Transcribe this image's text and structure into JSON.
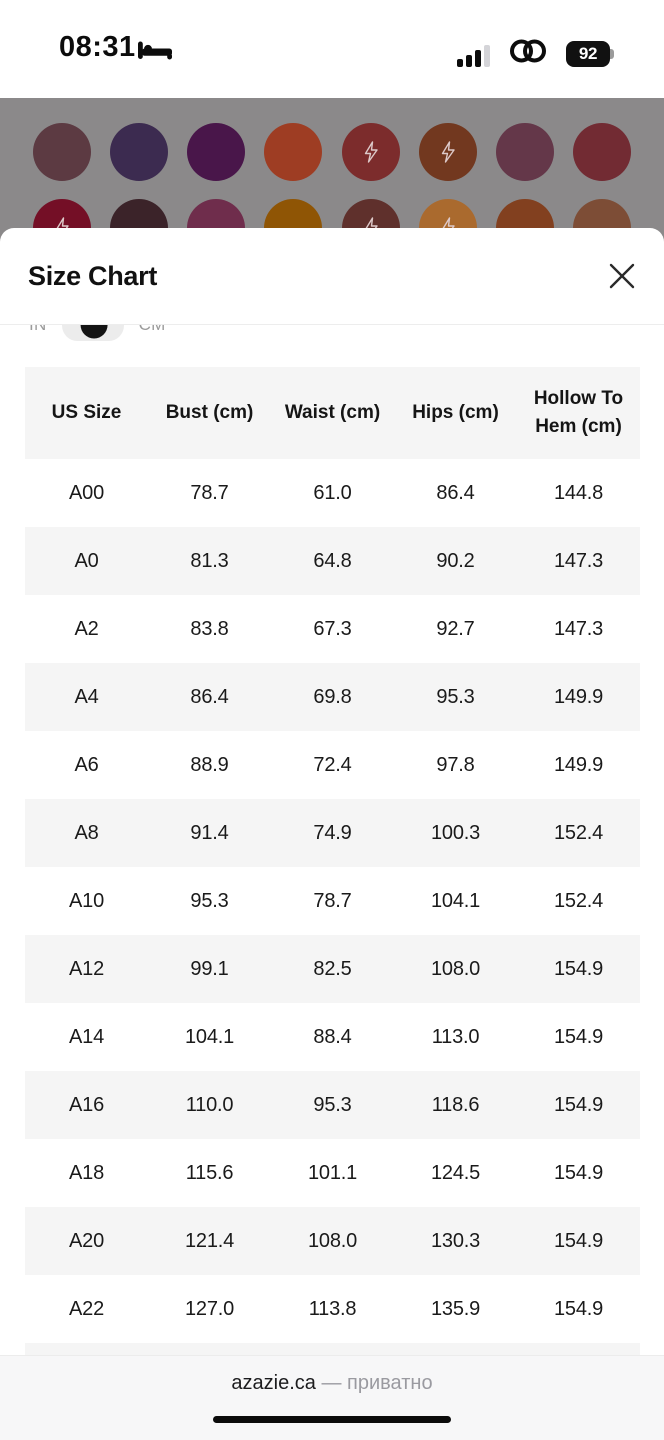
{
  "status_bar": {
    "time": "08:31",
    "battery_percent": "92"
  },
  "backdrop": {
    "overlay_color": "#8b898a",
    "swatch_rows": [
      [
        {
          "color": "#5c3a42",
          "bolt": false
        },
        {
          "color": "#3c2b50",
          "bolt": false
        },
        {
          "color": "#49164a",
          "bolt": false
        },
        {
          "color": "#9e3d23",
          "bolt": false
        },
        {
          "color": "#7c2c2c",
          "bolt": true
        },
        {
          "color": "#72381f",
          "bolt": true
        },
        {
          "color": "#643749",
          "bolt": false
        },
        {
          "color": "#722b33",
          "bolt": false
        }
      ],
      [
        {
          "color": "#740f26",
          "bolt": true
        },
        {
          "color": "#3b2329",
          "bolt": false
        },
        {
          "color": "#6f2d4c",
          "bolt": false
        },
        {
          "color": "#8f5505",
          "bolt": false
        },
        {
          "color": "#5f302c",
          "bolt": true
        },
        {
          "color": "#aa6a2e",
          "bolt": true
        },
        {
          "color": "#82401f",
          "bolt": false
        },
        {
          "color": "#7d4d36",
          "bolt": false
        }
      ]
    ]
  },
  "sheet": {
    "title": "Size Chart",
    "unit_toggle": {
      "in_label": "IN",
      "cm_label": "CM",
      "selected": "CM"
    }
  },
  "size_table": {
    "columns": [
      "US Size",
      "Bust (cm)",
      "Waist (cm)",
      "Hips (cm)",
      "Hollow To Hem (cm)"
    ],
    "rows": [
      [
        "A00",
        "78.7",
        "61.0",
        "86.4",
        "144.8"
      ],
      [
        "A0",
        "81.3",
        "64.8",
        "90.2",
        "147.3"
      ],
      [
        "A2",
        "83.8",
        "67.3",
        "92.7",
        "147.3"
      ],
      [
        "A4",
        "86.4",
        "69.8",
        "95.3",
        "149.9"
      ],
      [
        "A6",
        "88.9",
        "72.4",
        "97.8",
        "149.9"
      ],
      [
        "A8",
        "91.4",
        "74.9",
        "100.3",
        "152.4"
      ],
      [
        "A10",
        "95.3",
        "78.7",
        "104.1",
        "152.4"
      ],
      [
        "A12",
        "99.1",
        "82.5",
        "108.0",
        "154.9"
      ],
      [
        "A14",
        "104.1",
        "88.4",
        "113.0",
        "154.9"
      ],
      [
        "A16",
        "110.0",
        "95.3",
        "118.6",
        "154.9"
      ],
      [
        "A18",
        "115.6",
        "101.1",
        "124.5",
        "154.9"
      ],
      [
        "A20",
        "121.4",
        "108.0",
        "130.3",
        "154.9"
      ],
      [
        "A22",
        "127.0",
        "113.8",
        "135.9",
        "154.9"
      ]
    ]
  },
  "browser_bar": {
    "domain": "azazie.ca",
    "separator": "—",
    "privacy_label": "приватно"
  }
}
